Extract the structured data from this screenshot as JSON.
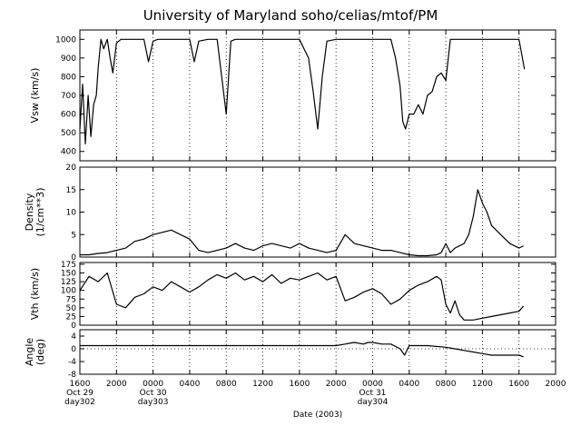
{
  "chart_data": {
    "type": "line",
    "title": "University of Maryland  soho/celias/mtof/PM",
    "xlabel": "Date (2003)",
    "x_hours_range": [
      0,
      52
    ],
    "x_ticks": [
      {
        "hour": 0,
        "label": "1600",
        "date": "Oct 29",
        "doy": "day302"
      },
      {
        "hour": 4,
        "label": "2000"
      },
      {
        "hour": 8,
        "label": "0000",
        "date": "Oct 30",
        "doy": "day303"
      },
      {
        "hour": 12,
        "label": "0400"
      },
      {
        "hour": 16,
        "label": "0800"
      },
      {
        "hour": 20,
        "label": "1200"
      },
      {
        "hour": 24,
        "label": "1600"
      },
      {
        "hour": 28,
        "label": "2000"
      },
      {
        "hour": 32,
        "label": "0000",
        "date": "Oct 31",
        "doy": "day304"
      },
      {
        "hour": 36,
        "label": "0400"
      },
      {
        "hour": 40,
        "label": "0800"
      },
      {
        "hour": 44,
        "label": "1200"
      },
      {
        "hour": 48,
        "label": "1600"
      },
      {
        "hour": 52,
        "label": "2000"
      }
    ],
    "vertical_gridlines_hours": [
      4,
      8,
      12,
      16,
      20,
      24,
      28,
      32,
      36,
      40,
      44,
      48
    ],
    "panels": [
      {
        "id": "vsw",
        "ylabel": [
          "Vsw (km/s)"
        ],
        "ylim": [
          350,
          1050
        ],
        "yticks": [
          400,
          500,
          600,
          700,
          800,
          900,
          1000
        ],
        "series": [
          {
            "x": [
              0,
              0.3,
              0.6,
              0.9,
              1.2,
              1.5,
              1.8,
              2,
              2.3,
              2.6,
              3,
              3.3,
              3.6,
              4,
              4.5,
              5,
              6,
              7,
              7.5,
              8,
              8.5,
              9,
              10,
              11,
              12,
              12.5,
              13,
              14,
              15,
              15.5,
              16,
              16.5,
              17,
              18,
              20,
              22,
              24,
              25,
              25.5,
              26,
              26.5,
              27,
              28,
              29,
              30,
              32,
              34,
              34.5,
              35,
              35.3,
              35.6,
              36,
              36.5,
              37,
              37.5,
              38,
              38.5,
              39,
              39.5,
              40,
              40.5,
              41,
              41.5,
              42,
              43,
              44,
              45,
              46,
              47,
              48,
              48.3,
              48.6
            ],
            "y": [
              520,
              760,
              440,
              700,
              480,
              650,
              700,
              850,
              1000,
              950,
              1000,
              900,
              820,
              980,
              1000,
              1000,
              1000,
              1000,
              880,
              990,
              1000,
              1000,
              1000,
              1000,
              1000,
              880,
              990,
              1000,
              1000,
              800,
              600,
              990,
              1000,
              1000,
              1000,
              1000,
              1000,
              900,
              720,
              520,
              800,
              990,
              1000,
              1000,
              1000,
              1000,
              1000,
              900,
              750,
              560,
              520,
              600,
              600,
              650,
              600,
              700,
              720,
              800,
              820,
              780,
              1000,
              1000,
              1000,
              1000,
              1000,
              1000,
              1000,
              1000,
              1000,
              1000,
              920,
              840
            ]
          }
        ]
      },
      {
        "id": "density",
        "ylabel": [
          "Density",
          "(1/cm**3)"
        ],
        "ylim": [
          0,
          20
        ],
        "yticks": [
          0,
          5,
          10,
          15,
          20
        ],
        "series": [
          {
            "x": [
              0,
              1,
              2,
              3,
              4,
              5,
              6,
              7,
              8,
              9,
              10,
              11,
              12,
              13,
              14,
              15,
              16,
              17,
              18,
              19,
              20,
              21,
              22,
              23,
              24,
              25,
              26,
              27,
              28,
              29,
              30,
              31,
              32,
              33,
              34,
              35,
              36,
              37,
              38,
              39,
              39.5,
              40,
              40.5,
              41,
              42,
              42.5,
              43,
              43.5,
              44,
              44.5,
              45,
              46,
              47,
              48,
              48.5
            ],
            "y": [
              0.5,
              0.5,
              0.8,
              1,
              1.5,
              2,
              3.5,
              4,
              5,
              5.5,
              6,
              5,
              4,
              1.5,
              1,
              1.5,
              2,
              3,
              2,
              1.5,
              2.5,
              3,
              2.5,
              2,
              3,
              2,
              1.5,
              1,
              1.5,
              5,
              3,
              2.5,
              2,
              1.5,
              1.5,
              1,
              0.5,
              0.3,
              0.3,
              0.5,
              1,
              3,
              1,
              2,
              3,
              5,
              9,
              15,
              12,
              10,
              7,
              5,
              3,
              2,
              2.5
            ]
          }
        ]
      },
      {
        "id": "vth",
        "ylabel": [
          "Vth (km/s)"
        ],
        "ylim": [
          0,
          180
        ],
        "yticks": [
          0,
          25,
          50,
          75,
          100,
          125,
          150,
          175
        ],
        "series": [
          {
            "x": [
              0,
              1,
              2,
              3,
              4,
              5,
              6,
              7,
              8,
              9,
              10,
              11,
              12,
              13,
              14,
              15,
              16,
              17,
              18,
              19,
              20,
              21,
              22,
              23,
              24,
              25,
              26,
              27,
              28,
              29,
              30,
              31,
              32,
              33,
              34,
              35,
              36,
              37,
              38,
              39,
              39.5,
              40,
              40.5,
              41,
              41.5,
              42,
              43,
              44,
              45,
              46,
              47,
              48,
              48.5
            ],
            "y": [
              100,
              140,
              125,
              150,
              60,
              50,
              80,
              90,
              110,
              100,
              125,
              110,
              95,
              110,
              130,
              145,
              135,
              150,
              130,
              140,
              125,
              145,
              120,
              135,
              130,
              140,
              150,
              130,
              140,
              70,
              80,
              95,
              105,
              90,
              60,
              75,
              100,
              115,
              125,
              140,
              130,
              60,
              35,
              70,
              30,
              15,
              15,
              20,
              25,
              30,
              35,
              40,
              55
            ]
          }
        ]
      },
      {
        "id": "angle",
        "ylabel": [
          "Angle",
          "(deg)"
        ],
        "ylim": [
          -8,
          6
        ],
        "yticks": [
          -8,
          -4,
          0,
          4
        ],
        "series": [
          {
            "x": [
              0,
              2,
              4,
              6,
              8,
              10,
              12,
              14,
              16,
              18,
              20,
              22,
              24,
              26,
              28,
              29,
              30,
              31,
              31.5,
              32,
              33,
              34,
              35,
              35.5,
              36,
              37,
              38,
              40,
              41,
              42,
              43,
              44,
              45,
              46,
              47,
              48,
              48.5
            ],
            "y": [
              1,
              1,
              1,
              1,
              1,
              1,
              1,
              1,
              1,
              1,
              1,
              1,
              1,
              1,
              1,
              1.5,
              2,
              1.5,
              2,
              2,
              1.5,
              1.5,
              0,
              -2,
              1,
              1,
              1,
              0.5,
              0,
              -0.5,
              -1,
              -1.5,
              -2,
              -2,
              -2,
              -2,
              -2.5
            ]
          }
        ]
      }
    ]
  }
}
